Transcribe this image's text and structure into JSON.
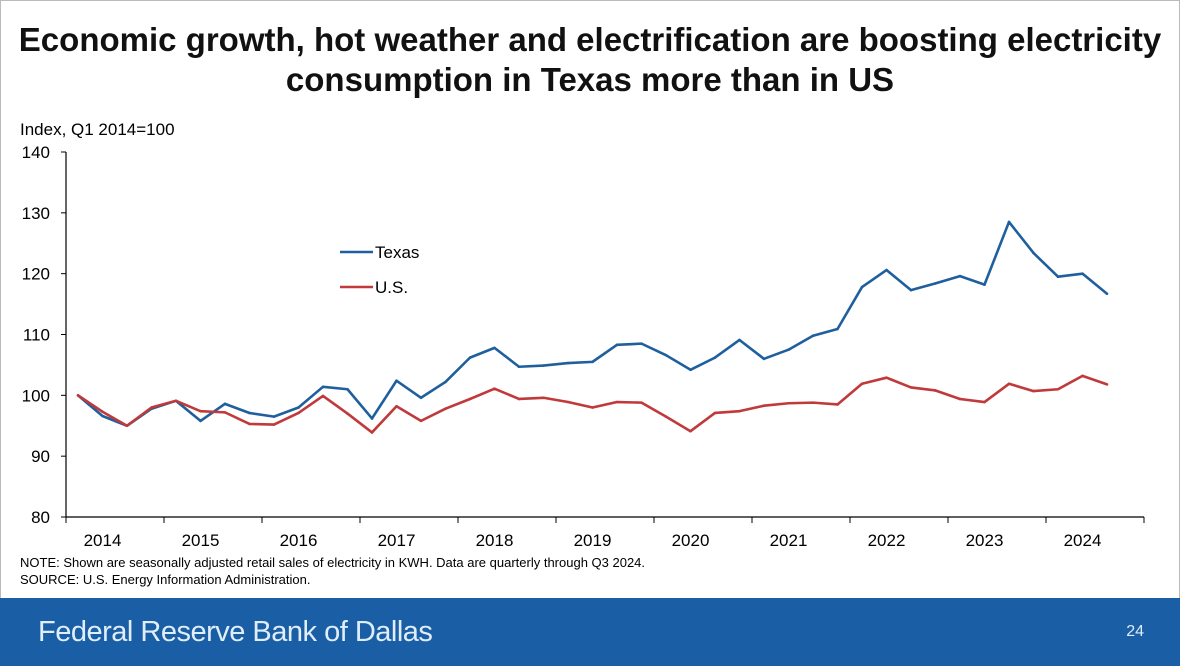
{
  "title": "Economic growth, hot weather and electrification are boosting electricity consumption in Texas more than in US",
  "footer": {
    "brand": "Federal Reserve Bank of Dallas",
    "page_number": "24",
    "color": "#1a5fa6"
  },
  "note": "NOTE: Shown are seasonally adjusted retail sales of electricity in KWH. Data are quarterly through Q3 2024.",
  "source": "SOURCE: U.S. Energy Information Administration.",
  "chart_data": {
    "type": "line",
    "title": "Economic growth, hot weather and electrification are boosting electricity consumption in Texas more than in US",
    "ylabel": "Index, Q1 2014=100",
    "xlabel": "",
    "ylim": [
      80,
      140
    ],
    "yticks": [
      80,
      90,
      100,
      110,
      120,
      130,
      140
    ],
    "xticks": [
      "2014",
      "2015",
      "2016",
      "2017",
      "2018",
      "2019",
      "2020",
      "2021",
      "2022",
      "2023",
      "2024"
    ],
    "x_start": "Q1 2014",
    "x_end": "Q3 2024",
    "frequency": "quarterly",
    "grid": false,
    "legend_position": "upper-left-center",
    "series": [
      {
        "name": "Texas",
        "color": "#1f5f9e",
        "values": [
          100,
          96.6,
          95,
          97.8,
          99.1,
          95.8,
          98.6,
          97.1,
          96.5,
          98,
          101.4,
          101,
          96.2,
          102.4,
          99.6,
          102.2,
          106.2,
          107.8,
          104.7,
          104.9,
          105.3,
          105.5,
          108.3,
          108.5,
          106.6,
          104.2,
          106.2,
          109.1,
          106,
          107.5,
          109.8,
          110.9,
          117.8,
          120.6,
          117.3,
          118.4,
          119.6,
          118.2,
          128.5,
          123.4,
          119.5,
          120,
          116.7
        ]
      },
      {
        "name": "U.S.",
        "color": "#c0393b",
        "values": [
          100,
          97.3,
          95,
          98,
          99.1,
          97.4,
          97.2,
          95.3,
          95.2,
          97.1,
          99.9,
          97,
          93.9,
          98.2,
          95.8,
          97.8,
          99.4,
          101.1,
          99.4,
          99.6,
          98.9,
          98,
          98.9,
          98.8,
          96.5,
          94.1,
          97.1,
          97.4,
          98.3,
          98.7,
          98.8,
          98.5,
          101.9,
          102.9,
          101.3,
          100.8,
          99.4,
          98.9,
          101.9,
          100.7,
          101,
          103.2,
          101.8
        ]
      }
    ]
  }
}
